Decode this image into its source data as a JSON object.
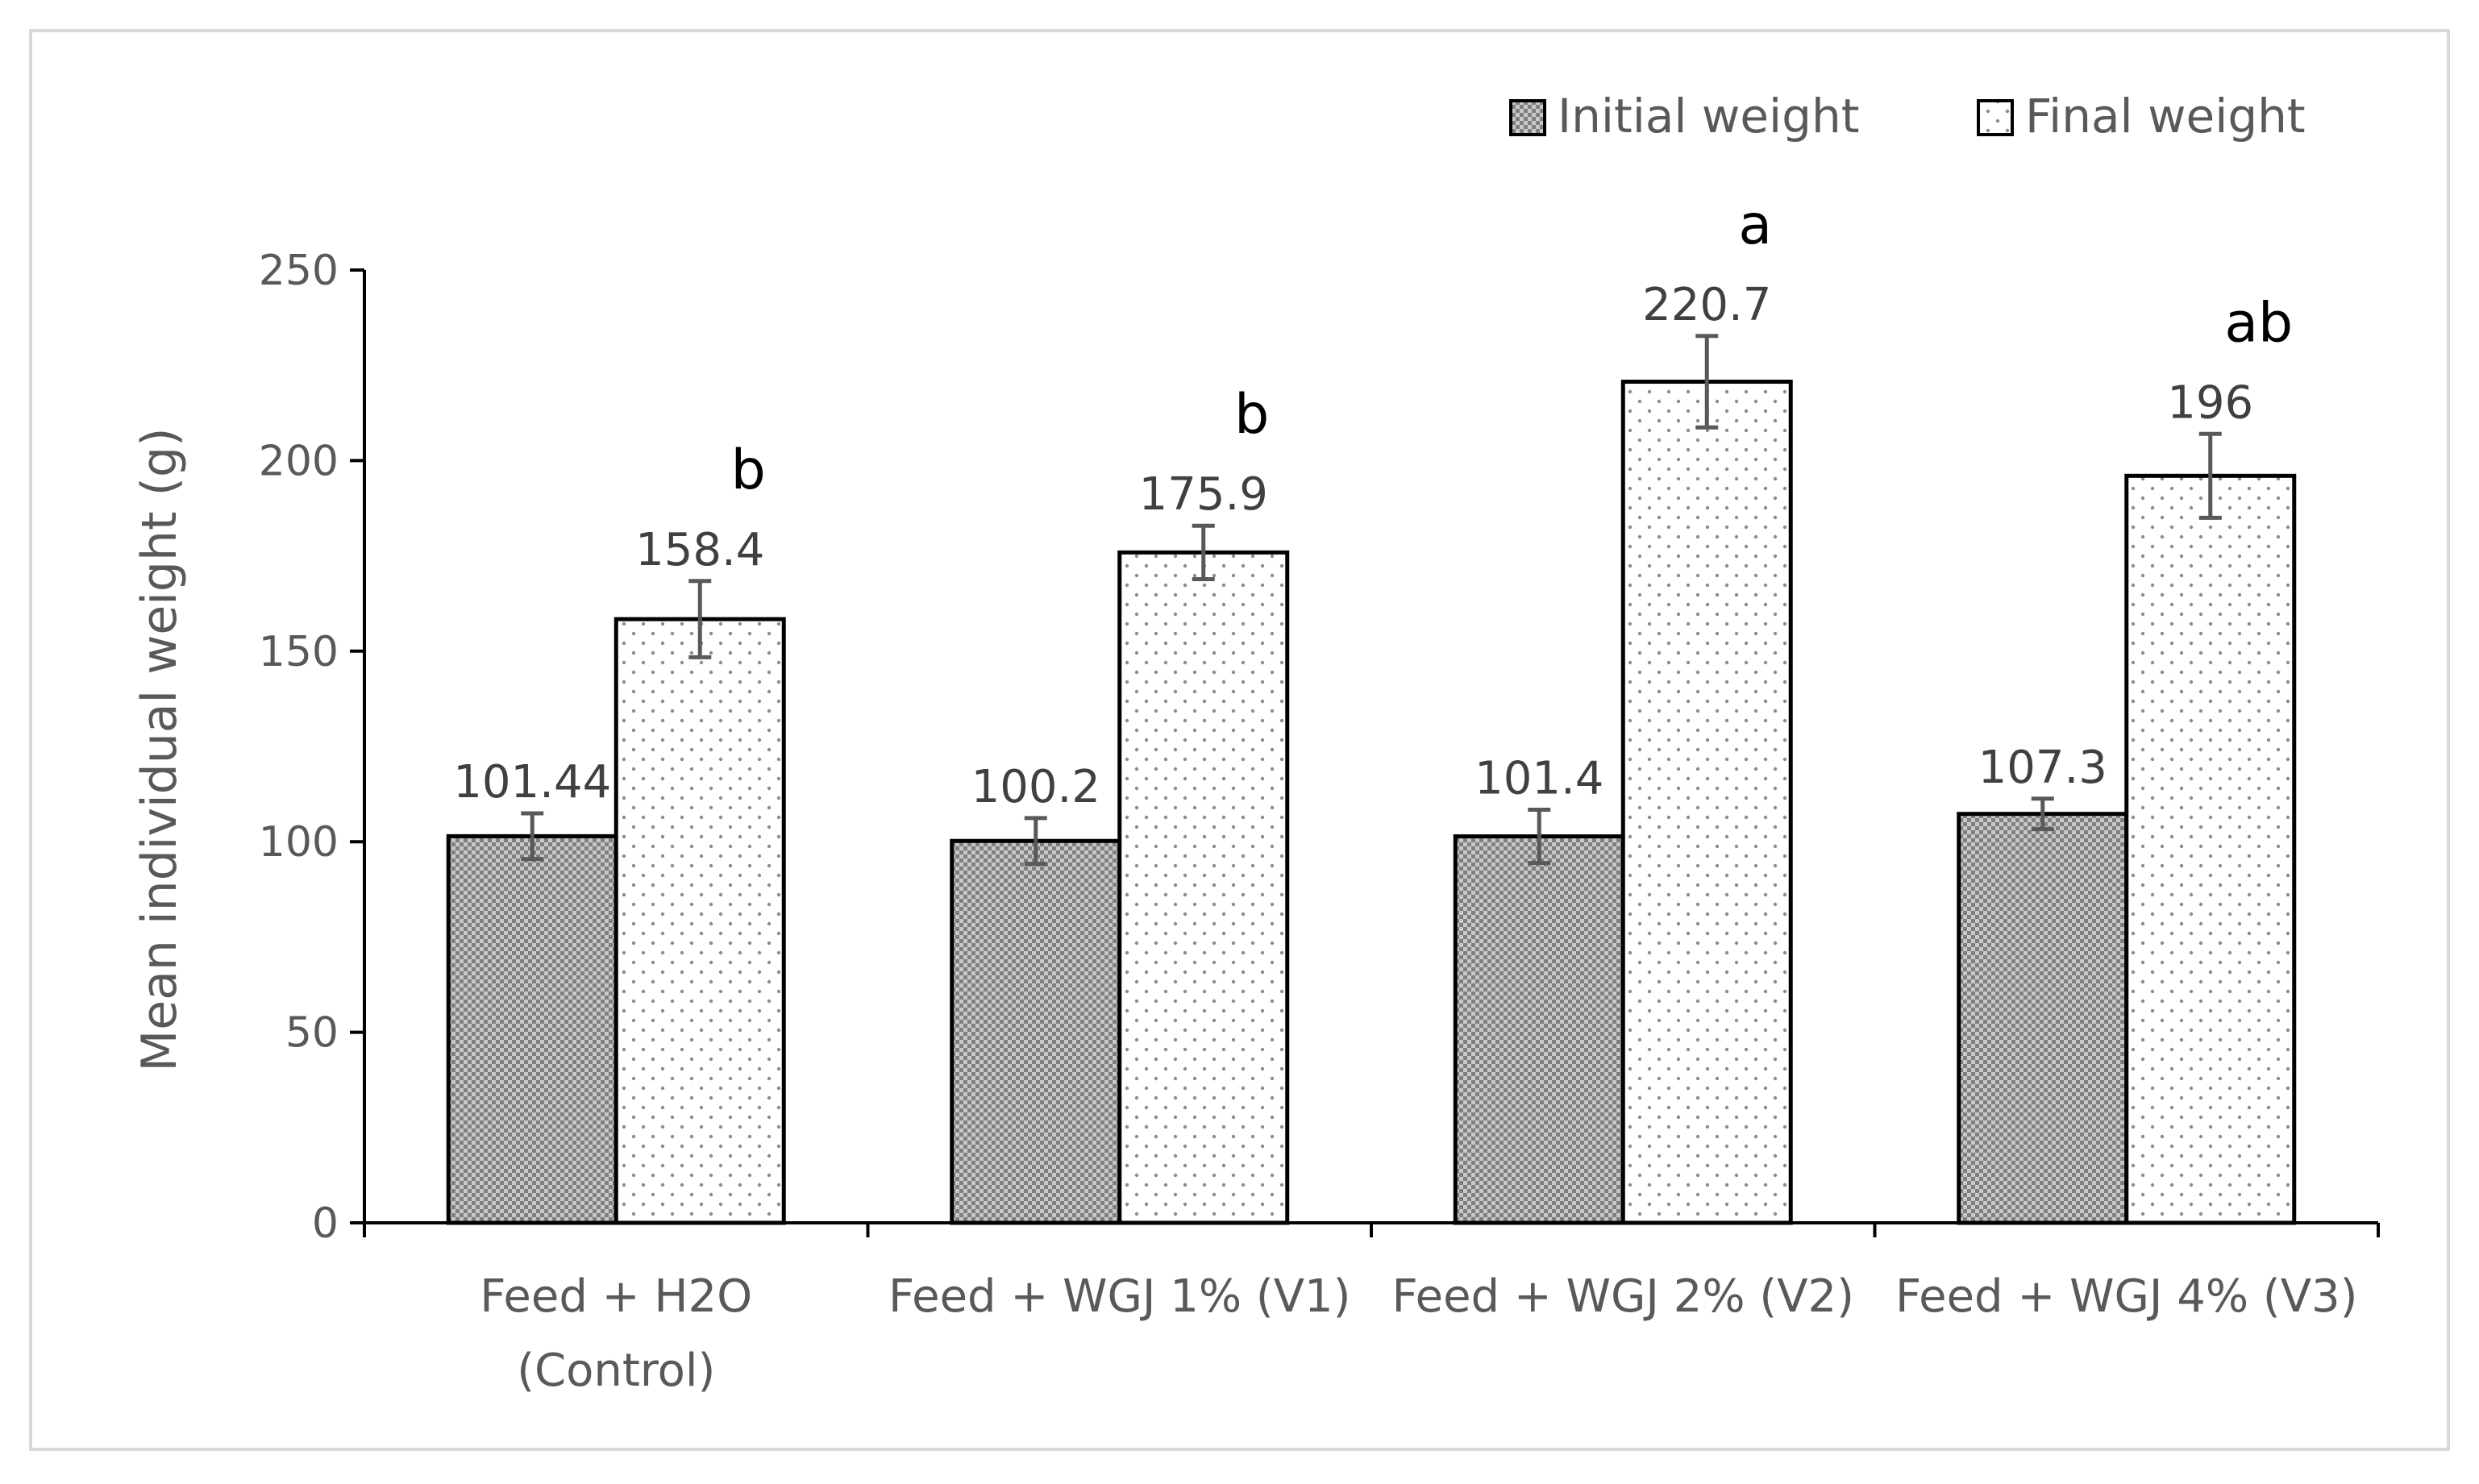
{
  "chart_data": {
    "type": "bar",
    "categories": [
      [
        "Feed + H2O",
        "(Control)"
      ],
      [
        "Feed + WGJ 1% (V1)"
      ],
      [
        "Feed + WGJ 2% (V2)"
      ],
      [
        "Feed + WGJ 4% (V3)"
      ]
    ],
    "series": [
      {
        "name": "Initial weight",
        "values": [
          101.44,
          100.2,
          101.4,
          107.3
        ],
        "errors": [
          6,
          6,
          7,
          4
        ],
        "labels": [
          "101.44",
          "100.2",
          "101.4",
          "107.3"
        ],
        "pattern": "checker"
      },
      {
        "name": "Final weight",
        "values": [
          158.4,
          175.9,
          220.7,
          196
        ],
        "errors": [
          10,
          7,
          12,
          11
        ],
        "labels": [
          "158.4",
          "175.9",
          "220.7",
          "196"
        ],
        "pattern": "dots"
      }
    ],
    "significance_letters": [
      "b",
      "b",
      "a",
      "ab"
    ],
    "ylabel": "Mean individual weight (g)",
    "xlabel": "",
    "ylim": [
      0,
      250
    ],
    "yticks": [
      0,
      50,
      100,
      150,
      200,
      250
    ],
    "grid": false,
    "legend_position": "top-right"
  },
  "colors": {
    "initial_fill": "#7f7f7f",
    "initial_light": "#c8c8c8",
    "final_fill": "#ffffff",
    "final_dots": "#8c8c8c",
    "outline": "#000000",
    "text": "#595959",
    "frame": "#d9d9d9"
  }
}
